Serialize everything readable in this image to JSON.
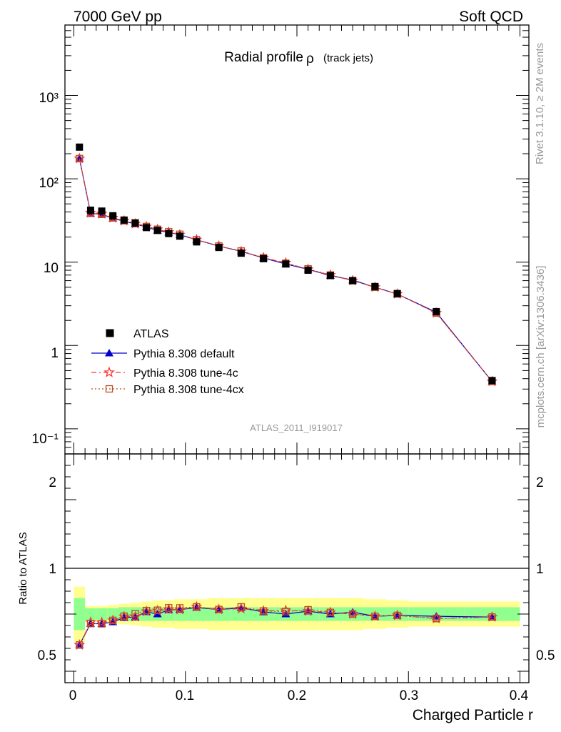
{
  "header": {
    "energy_label": "7000 GeV pp",
    "process_label": "Soft QCD"
  },
  "side_labels": {
    "rivet": "Rivet 3.1.10, ≥ 2M events",
    "mcplots": "mcplots.cern.ch [arXiv:1306.3436]"
  },
  "colors": {
    "data": "#000000",
    "default": "#0000cc",
    "tune4c": "#ff3333",
    "tune4cx": "#b84e1e",
    "band_inner": "#90ff90",
    "band_outer": "#ffff90",
    "watermark": "#999999"
  },
  "chart_data": {
    "type": "scatter",
    "title": "Radial profile",
    "title_symbol": "ρ",
    "title_suffix": "(track jets)",
    "xlabel": "Charged Particle r",
    "ylabel_ratio": "Ratio to ATLAS",
    "watermark": "ATLAS_2011_I919017",
    "xlim": [
      -0.008,
      0.408
    ],
    "ylim_main": [
      0.05,
      7000
    ],
    "ylim_ratio": [
      0.4,
      2.4
    ],
    "y_scale_main": "log",
    "x_ticks": [
      "0",
      "0.1",
      "0.2",
      "0.3",
      "0.4"
    ],
    "y_ticks_main": [
      "10⁻¹",
      "1",
      "10",
      "10²",
      "10³"
    ],
    "y_ticks_ratio": [
      "0.5",
      "1",
      "2"
    ],
    "legend_position": "middle-left",
    "x": [
      0.005,
      0.015,
      0.025,
      0.035,
      0.045,
      0.055,
      0.065,
      0.075,
      0.085,
      0.095,
      0.11,
      0.13,
      0.15,
      0.17,
      0.19,
      0.21,
      0.23,
      0.25,
      0.27,
      0.29,
      0.325,
      0.375
    ],
    "x_edges": [
      0.0,
      0.01,
      0.02,
      0.03,
      0.04,
      0.05,
      0.06,
      0.07,
      0.08,
      0.09,
      0.1,
      0.12,
      0.14,
      0.16,
      0.18,
      0.2,
      0.22,
      0.24,
      0.26,
      0.28,
      0.3,
      0.35,
      0.4
    ],
    "band_inner": [
      0.14,
      0.05,
      0.05,
      0.05,
      0.06,
      0.06,
      0.06,
      0.06,
      0.06,
      0.06,
      0.06,
      0.06,
      0.06,
      0.06,
      0.06,
      0.06,
      0.06,
      0.06,
      0.06,
      0.06,
      0.06,
      0.06
    ],
    "band_outer": [
      0.24,
      0.07,
      0.07,
      0.08,
      0.09,
      0.1,
      0.11,
      0.12,
      0.12,
      0.13,
      0.13,
      0.14,
      0.14,
      0.14,
      0.14,
      0.14,
      0.14,
      0.14,
      0.13,
      0.12,
      0.11,
      0.11
    ],
    "data_name": "ATLAS",
    "data": [
      240,
      42,
      41,
      36,
      32,
      29.5,
      26,
      24,
      22,
      20.5,
      17.5,
      15,
      12.8,
      11,
      9.5,
      8.0,
      6.9,
      6.0,
      5.1,
      4.2,
      2.55,
      0.38
    ],
    "series": [
      {
        "name": "Pythia 8.308 default",
        "key": "default",
        "marker": "triangle",
        "dash": "",
        "values": [
          175,
          38.5,
          37.5,
          33.5,
          31,
          28.7,
          26.5,
          24,
          22.8,
          21.3,
          18.5,
          15.6,
          13.5,
          11.2,
          9.5,
          8.2,
          6.9,
          6.1,
          5.0,
          4.15,
          2.5,
          0.37
        ]
      },
      {
        "name": "Pythia 8.308 tune-4c",
        "key": "tune4c",
        "marker": "star",
        "dash": "7,4,2,4",
        "values": [
          175,
          39,
          38,
          34,
          31.3,
          28.8,
          26.6,
          24.7,
          22.9,
          21.3,
          18.6,
          15.6,
          13.4,
          11.3,
          9.8,
          8.2,
          7.0,
          6.0,
          5.0,
          4.15,
          2.45,
          0.37
        ]
      },
      {
        "name": "Pythia 8.308 tune-4cx",
        "key": "tune4cx",
        "marker": "square",
        "dash": "2,3",
        "values": [
          175,
          38.5,
          37.5,
          34,
          31.4,
          29.6,
          26.8,
          24.8,
          23.2,
          21.6,
          18.6,
          15.6,
          13.6,
          11.3,
          9.7,
          8.3,
          7.0,
          6.0,
          5.0,
          4.15,
          2.45,
          0.37
        ]
      }
    ]
  }
}
